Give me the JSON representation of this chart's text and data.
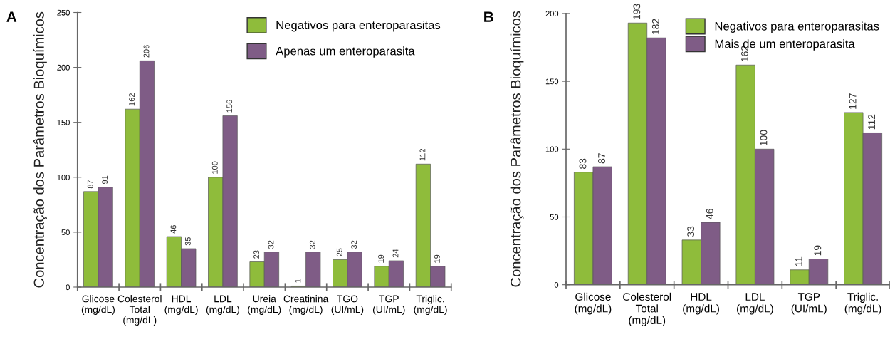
{
  "chart_data": [
    {
      "type": "bar",
      "ylabel": "Concentração dos Parâmetros Bioquímicos",
      "annotations": [
        "A"
      ],
      "categories": [
        "Glicose\n(mg/dL)",
        "Colesterol\nTotal\n(mg/dL)",
        "HDL\n(mg/dL)",
        "LDL\n(mg/dL)",
        "Ureia\n(mg/dL)",
        "Creatinina\n(mg/dL)",
        "TGO\n(UI/mL)",
        "TGP\n(UI/mL)",
        "Triglic.\n(mg/dL)"
      ],
      "series": [
        {
          "name": "Negativos para enteroparasitas",
          "color": "#8fbc3b",
          "values": [
            87,
            162,
            46,
            100,
            23,
            1,
            25,
            19,
            112
          ],
          "value_labels": [
            "87",
            "162",
            "46",
            "100",
            "23",
            "1",
            "25",
            "19",
            "112"
          ]
        },
        {
          "name": "Apenas um enteroparasita",
          "color": "#7f5c86",
          "values": [
            91,
            206,
            35,
            156,
            32,
            32,
            32,
            24,
            19
          ],
          "value_labels": [
            "91",
            "206",
            "35",
            "156",
            "32",
            "32",
            "32",
            "24",
            "19"
          ]
        }
      ],
      "ylim": [
        0,
        250
      ],
      "yticks": [
        0,
        50,
        100,
        150,
        200,
        250
      ],
      "grid": false,
      "legend": "top right"
    },
    {
      "type": "bar",
      "ylabel": "Concentração dos Parâmetros Bioquímicos",
      "annotations": [
        "B"
      ],
      "categories": [
        "Glicose\n(mg/dL)",
        "Colesterol\nTotal\n(mg/dL)",
        "HDL\n(mg/dL)",
        "LDL\n(mg/dL)",
        "TGP\n(UI/mL)",
        "Triglic.\n(mg/dL)"
      ],
      "series": [
        {
          "name": "Negativos para enteroparasitas",
          "color": "#8fbc3b",
          "values": [
            83,
            193,
            33,
            162,
            11,
            127
          ]
        },
        {
          "name": "Mais de um enteroparasita",
          "color": "#7f5c86",
          "values": [
            87,
            182,
            46,
            100,
            19,
            112
          ]
        }
      ],
      "data_labels": true,
      "ylim": [
        0,
        200
      ],
      "yticks": [
        0,
        50,
        100,
        150,
        200
      ],
      "grid": false,
      "legend": "top right"
    }
  ]
}
